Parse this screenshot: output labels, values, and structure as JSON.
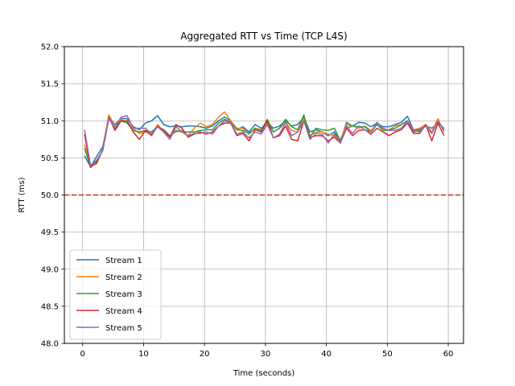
{
  "chart_data": {
    "type": "line",
    "title": "Aggregated RTT vs Time (TCP L4S)",
    "xlabel": "Time (seconds)",
    "ylabel": "RTT (ms)",
    "xlim": [
      -3,
      62.5
    ],
    "ylim": [
      48.0,
      52.0
    ],
    "x_ticks": [
      0,
      10,
      20,
      30,
      40,
      50,
      60
    ],
    "x_tick_labels": [
      "0",
      "10",
      "20",
      "30",
      "40",
      "50",
      "60"
    ],
    "y_ticks": [
      48.0,
      48.5,
      49.0,
      49.5,
      50.0,
      50.5,
      51.0,
      51.5,
      52.0
    ],
    "y_tick_labels": [
      "48.0",
      "48.5",
      "49.0",
      "49.5",
      "50.0",
      "50.5",
      "51.0",
      "51.5",
      "52.0"
    ],
    "grid": true,
    "legend_position": "lower-left",
    "reference_line": {
      "y": 50.0,
      "color": "#d62728",
      "style": "dashed"
    },
    "x": [
      0.3,
      1.3,
      2.3,
      3.3,
      4.3,
      5.3,
      6.3,
      7.3,
      8.3,
      9.3,
      10.3,
      11.3,
      12.3,
      13.3,
      14.3,
      15.3,
      16.3,
      17.3,
      18.3,
      19.3,
      20.3,
      21.3,
      22.3,
      23.3,
      24.3,
      25.3,
      26.3,
      27.3,
      28.3,
      29.3,
      30.3,
      31.3,
      32.3,
      33.3,
      34.3,
      35.3,
      36.3,
      37.3,
      38.3,
      39.3,
      40.3,
      41.3,
      42.3,
      43.3,
      44.3,
      45.3,
      46.3,
      47.3,
      48.3,
      49.3,
      50.3,
      51.3,
      52.3,
      53.3,
      54.3,
      55.3,
      56.3,
      57.3,
      58.3,
      59.3
    ],
    "series": [
      {
        "name": "Stream 1",
        "color": "#1f77b4",
        "values": [
          50.53,
          50.38,
          50.52,
          50.65,
          51.05,
          50.95,
          51.03,
          51.03,
          50.92,
          50.88,
          50.97,
          51.0,
          51.07,
          50.95,
          50.92,
          50.93,
          50.92,
          50.93,
          50.93,
          50.92,
          50.9,
          50.93,
          51.0,
          51.05,
          51.0,
          50.88,
          50.92,
          50.85,
          50.95,
          50.9,
          50.98,
          50.9,
          50.93,
          51.0,
          50.93,
          50.95,
          51.05,
          50.85,
          50.88,
          50.85,
          50.8,
          50.85,
          50.72,
          50.98,
          50.93,
          50.98,
          50.97,
          50.92,
          50.97,
          50.92,
          50.92,
          50.95,
          50.98,
          51.06,
          50.88,
          50.88,
          50.93,
          50.9,
          50.97,
          50.9
        ]
      },
      {
        "name": "Stream 2",
        "color": "#ff7f0e",
        "values": [
          50.68,
          50.4,
          50.42,
          50.62,
          51.08,
          50.92,
          51.02,
          50.98,
          50.9,
          50.83,
          50.85,
          50.82,
          50.95,
          50.85,
          50.8,
          50.85,
          50.87,
          50.8,
          50.9,
          50.97,
          50.92,
          50.95,
          51.05,
          51.12,
          51.0,
          50.9,
          50.9,
          50.82,
          50.9,
          50.88,
          50.97,
          50.85,
          50.9,
          50.98,
          50.87,
          50.85,
          51.03,
          50.8,
          50.85,
          50.85,
          50.82,
          50.8,
          50.75,
          50.95,
          50.93,
          50.9,
          50.93,
          50.87,
          50.95,
          50.88,
          50.88,
          50.93,
          50.95,
          51.0,
          50.88,
          50.9,
          50.95,
          50.85,
          51.03,
          50.85
        ]
      },
      {
        "name": "Stream 3",
        "color": "#2ca02c",
        "values": [
          50.63,
          50.38,
          50.43,
          50.62,
          51.05,
          50.9,
          51.0,
          50.97,
          50.87,
          50.85,
          50.87,
          50.85,
          50.92,
          50.88,
          50.8,
          50.87,
          50.85,
          50.85,
          50.85,
          50.87,
          50.88,
          50.88,
          50.97,
          51.02,
          50.98,
          50.88,
          50.87,
          50.83,
          50.9,
          50.87,
          51.02,
          50.85,
          50.9,
          51.02,
          50.92,
          50.88,
          51.08,
          50.78,
          50.9,
          50.88,
          50.87,
          50.9,
          50.73,
          50.9,
          50.93,
          50.92,
          50.92,
          50.85,
          50.95,
          50.87,
          50.88,
          50.9,
          50.95,
          51.0,
          50.85,
          50.87,
          50.93,
          50.83,
          51.0,
          50.88
        ]
      },
      {
        "name": "Stream 4",
        "color": "#d62728",
        "values": [
          50.82,
          50.37,
          50.45,
          50.6,
          51.05,
          50.87,
          51.0,
          51.0,
          50.85,
          50.75,
          50.87,
          50.8,
          50.93,
          50.87,
          50.78,
          50.95,
          50.9,
          50.78,
          50.82,
          50.85,
          50.82,
          50.85,
          50.93,
          50.97,
          50.97,
          50.8,
          50.83,
          50.73,
          50.88,
          50.85,
          51.0,
          50.77,
          50.8,
          50.93,
          50.75,
          50.73,
          51.0,
          50.77,
          50.8,
          50.8,
          50.73,
          50.78,
          50.7,
          50.9,
          50.8,
          50.87,
          50.88,
          50.82,
          50.9,
          50.85,
          50.8,
          50.85,
          50.88,
          50.97,
          50.83,
          50.83,
          50.95,
          50.73,
          50.97,
          50.8
        ]
      },
      {
        "name": "Stream 5",
        "color": "#9467bd",
        "values": [
          50.88,
          50.4,
          50.47,
          50.6,
          51.03,
          50.9,
          51.05,
          51.07,
          50.9,
          50.9,
          50.9,
          50.82,
          50.92,
          50.85,
          50.75,
          50.92,
          50.85,
          50.8,
          50.83,
          50.83,
          50.85,
          50.82,
          50.93,
          51.0,
          50.98,
          50.82,
          50.85,
          50.77,
          50.85,
          50.82,
          50.95,
          50.77,
          50.82,
          50.98,
          50.8,
          50.85,
          51.0,
          50.75,
          50.83,
          50.82,
          50.7,
          50.82,
          50.7,
          50.93,
          50.83,
          50.93,
          50.88,
          50.85,
          50.98,
          50.9,
          50.87,
          50.87,
          50.9,
          51.0,
          50.87,
          50.85,
          50.93,
          50.83,
          51.0,
          50.87
        ]
      }
    ]
  }
}
